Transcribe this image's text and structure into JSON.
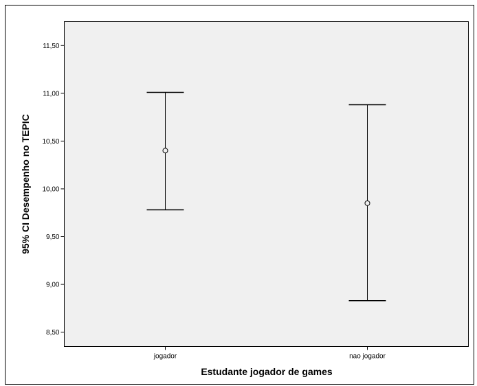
{
  "chart_data": {
    "type": "errorbar",
    "title": "",
    "xlabel": "Estudante jogador de games",
    "ylabel": "95% CI Desempenho no TEPIC",
    "ylim": [
      8.35,
      11.75
    ],
    "yticks": [
      "8,50",
      "9,00",
      "9,50",
      "10,00",
      "10,50",
      "11,00",
      "11,50"
    ],
    "ytick_values": [
      8.5,
      9.0,
      9.5,
      10.0,
      10.5,
      11.0,
      11.5
    ],
    "categories": [
      "jogador",
      "nao jogador"
    ],
    "series": [
      {
        "means": [
          10.4,
          9.85
        ],
        "lower": [
          9.78,
          8.83
        ],
        "upper": [
          11.01,
          10.88
        ]
      }
    ],
    "grid": false,
    "background": "#f0f0f0",
    "frame_color": "#000000"
  }
}
